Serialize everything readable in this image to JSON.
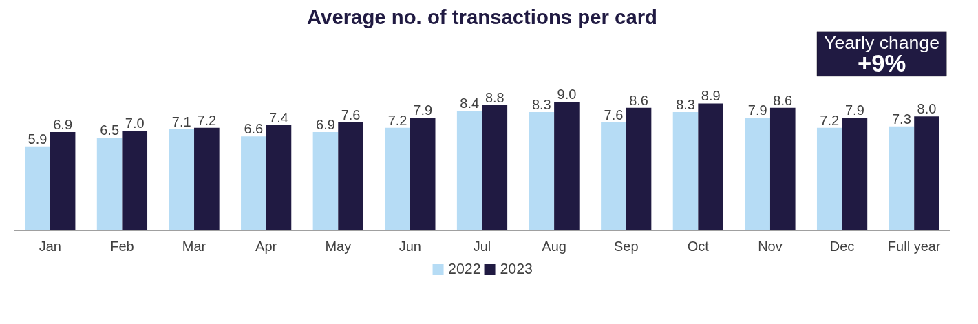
{
  "chart_data": {
    "type": "bar",
    "title": "Average no. of transactions per card",
    "categories": [
      "Jan",
      "Feb",
      "Mar",
      "Apr",
      "May",
      "Jun",
      "Jul",
      "Aug",
      "Sep",
      "Oct",
      "Nov",
      "Dec",
      "Full year"
    ],
    "series": [
      {
        "name": "2022",
        "color": "#b6dcf5",
        "values": [
          5.9,
          6.5,
          7.1,
          6.6,
          6.9,
          7.2,
          8.4,
          8.3,
          7.6,
          8.3,
          7.9,
          7.2,
          7.3
        ],
        "value_labels": [
          "5.9",
          "6.5",
          "7.1",
          "6.6",
          "6.9",
          "7.2",
          "8.4",
          "8.3",
          "7.6",
          "8.3",
          "7.9",
          "7.2",
          "7.3"
        ]
      },
      {
        "name": "2023",
        "color": "#201a42",
        "values": [
          6.9,
          7.0,
          7.2,
          7.4,
          7.6,
          7.9,
          8.8,
          9.0,
          8.6,
          8.9,
          8.6,
          7.9,
          8.0
        ],
        "value_labels": [
          "6.9",
          "7.0",
          "7.2",
          "7.4",
          "7.6",
          "7.9",
          "8.8",
          "9.0",
          "8.6",
          "8.9",
          "8.6",
          "7.9",
          "8.0"
        ]
      }
    ],
    "legend": "bottom",
    "grid": false,
    "annotations": [
      "Yearly change",
      "+9%"
    ]
  }
}
